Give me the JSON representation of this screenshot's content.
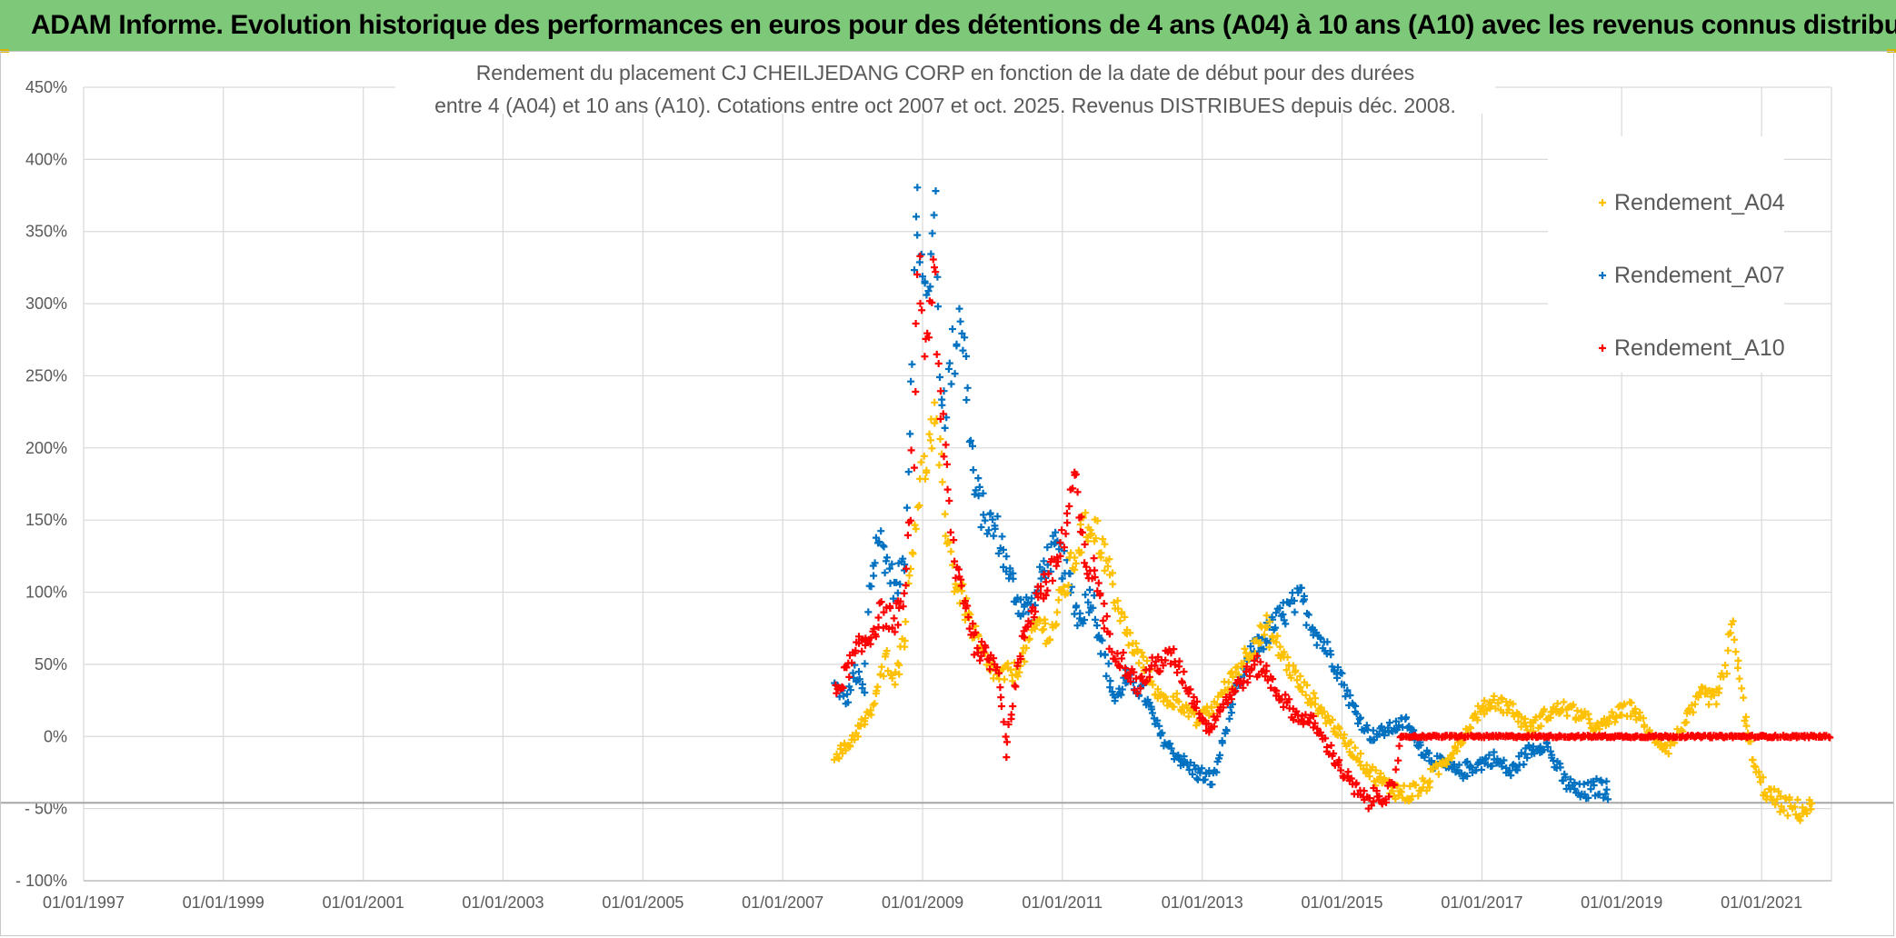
{
  "banner": {
    "title": "ADAM Informe. Evolution historique des performances en euros pour des détentions de 4 ans (A04) à 10 ans (A10) avec les revenus connus distribués"
  },
  "colors": {
    "banner": "#7ec87a",
    "A04": "#ffc000",
    "A07": "#0070c0",
    "A10": "#ff0000",
    "grid": "#d9d9d9",
    "text": "#595959"
  },
  "chart_data": {
    "type": "scatter",
    "title_lines": [
      "Rendement du placement CJ CHEILJEDANG CORP en fonction de la date de début pour des durées",
      "entre 4 (A04) et 10 ans (A10). Cotations entre oct 2007 et oct. 2025. Revenus DISTRIBUES depuis déc. 2008."
    ],
    "x_ticks": [
      "01/01/1997",
      "01/01/1999",
      "01/01/2001",
      "01/01/2003",
      "01/01/2005",
      "01/01/2007",
      "01/01/2009",
      "01/01/2011",
      "01/01/2013",
      "01/01/2015",
      "01/01/2017",
      "01/01/2019",
      "01/01/2021"
    ],
    "xlim": [
      "1997-01-01",
      "2022-01-01"
    ],
    "y_ticks": [
      "- 100%",
      "- 50%",
      "0%",
      "50%",
      "100%",
      "150%",
      "200%",
      "250%",
      "300%",
      "350%",
      "400%",
      "450%"
    ],
    "ylim": [
      -100,
      450
    ],
    "reference_line_y": -46,
    "legend_position": "right",
    "grid": true,
    "series": [
      {
        "name": "Rendement_A04",
        "marker": "+",
        "points": [
          [
            "2007-10-01",
            -12
          ],
          [
            "2007-12-01",
            -8
          ],
          [
            "2008-02-01",
            5
          ],
          [
            "2008-04-01",
            15
          ],
          [
            "2008-05-15",
            35
          ],
          [
            "2008-07-01",
            55
          ],
          [
            "2008-08-15",
            40
          ],
          [
            "2008-10-01",
            75
          ],
          [
            "2008-11-15",
            140
          ],
          [
            "2008-12-15",
            170
          ],
          [
            "2009-02-01",
            200
          ],
          [
            "2009-03-01",
            215
          ],
          [
            "2009-04-01",
            190
          ],
          [
            "2009-05-01",
            150
          ],
          [
            "2009-06-15",
            110
          ],
          [
            "2009-08-01",
            95
          ],
          [
            "2009-10-01",
            70
          ],
          [
            "2009-12-01",
            50
          ],
          [
            "2010-02-01",
            42
          ],
          [
            "2010-05-01",
            45
          ],
          [
            "2010-07-01",
            62
          ],
          [
            "2010-09-01",
            80
          ],
          [
            "2010-11-01",
            70
          ],
          [
            "2011-02-01",
            110
          ],
          [
            "2011-04-01",
            135
          ],
          [
            "2011-06-01",
            150
          ],
          [
            "2011-08-01",
            130
          ],
          [
            "2011-10-01",
            100
          ],
          [
            "2011-12-01",
            70
          ],
          [
            "2012-03-01",
            50
          ],
          [
            "2012-06-01",
            25
          ],
          [
            "2012-09-01",
            25
          ],
          [
            "2012-12-01",
            10
          ],
          [
            "2013-03-01",
            20
          ],
          [
            "2013-06-01",
            40
          ],
          [
            "2013-09-01",
            60
          ],
          [
            "2013-12-01",
            75
          ],
          [
            "2014-03-01",
            55
          ],
          [
            "2014-06-01",
            35
          ],
          [
            "2014-09-01",
            20
          ],
          [
            "2014-12-01",
            5
          ],
          [
            "2015-03-01",
            -10
          ],
          [
            "2015-06-01",
            -25
          ],
          [
            "2015-09-01",
            -35
          ],
          [
            "2015-12-01",
            -40
          ],
          [
            "2016-03-01",
            -35
          ],
          [
            "2016-06-01",
            -20
          ],
          [
            "2016-09-01",
            -5
          ],
          [
            "2016-12-01",
            15
          ],
          [
            "2017-03-01",
            25
          ],
          [
            "2017-06-01",
            20
          ],
          [
            "2017-09-01",
            5
          ],
          [
            "2017-12-01",
            15
          ],
          [
            "2018-03-01",
            20
          ],
          [
            "2018-06-01",
            15
          ],
          [
            "2018-09-01",
            5
          ],
          [
            "2018-12-01",
            15
          ],
          [
            "2019-03-01",
            20
          ],
          [
            "2019-06-01",
            0
          ],
          [
            "2019-09-01",
            -8
          ],
          [
            "2019-12-01",
            10
          ],
          [
            "2020-03-01",
            30
          ],
          [
            "2020-05-01",
            25
          ],
          [
            "2020-07-01",
            45
          ],
          [
            "2020-08-01",
            85
          ],
          [
            "2020-10-01",
            15
          ],
          [
            "2020-12-01",
            -25
          ],
          [
            "2021-02-01",
            -40
          ],
          [
            "2021-05-01",
            -48
          ],
          [
            "2021-08-01",
            -52
          ],
          [
            "2021-10-01",
            -48
          ]
        ]
      },
      {
        "name": "Rendement_A07",
        "marker": "+",
        "points": [
          [
            "2007-10-01",
            35
          ],
          [
            "2007-12-01",
            25
          ],
          [
            "2008-01-15",
            45
          ],
          [
            "2008-03-01",
            30
          ],
          [
            "2008-04-01",
            100
          ],
          [
            "2008-05-15",
            140
          ],
          [
            "2008-07-01",
            120
          ],
          [
            "2008-08-15",
            100
          ],
          [
            "2008-10-01",
            130
          ],
          [
            "2008-11-01",
            250
          ],
          [
            "2008-12-01",
            375
          ],
          [
            "2009-01-01",
            310
          ],
          [
            "2009-02-01",
            300
          ],
          [
            "2009-03-01",
            385
          ],
          [
            "2009-04-01",
            250
          ],
          [
            "2009-05-01",
            230
          ],
          [
            "2009-06-15",
            270
          ],
          [
            "2009-07-15",
            300
          ],
          [
            "2009-08-15",
            255
          ],
          [
            "2009-10-01",
            170
          ],
          [
            "2009-12-01",
            150
          ],
          [
            "2010-02-01",
            140
          ],
          [
            "2010-04-01",
            110
          ],
          [
            "2010-06-01",
            90
          ],
          [
            "2010-08-01",
            90
          ],
          [
            "2010-10-01",
            120
          ],
          [
            "2010-12-01",
            130
          ],
          [
            "2011-02-01",
            110
          ],
          [
            "2011-04-01",
            80
          ],
          [
            "2011-06-01",
            100
          ],
          [
            "2011-08-01",
            60
          ],
          [
            "2011-10-01",
            25
          ],
          [
            "2011-12-01",
            40
          ],
          [
            "2012-03-01",
            30
          ],
          [
            "2012-06-01",
            0
          ],
          [
            "2012-09-01",
            -15
          ],
          [
            "2012-12-01",
            -25
          ],
          [
            "2013-03-01",
            -30
          ],
          [
            "2013-06-01",
            20
          ],
          [
            "2013-09-01",
            55
          ],
          [
            "2013-12-01",
            70
          ],
          [
            "2014-03-01",
            85
          ],
          [
            "2014-06-01",
            95
          ],
          [
            "2014-09-01",
            70
          ],
          [
            "2014-12-01",
            50
          ],
          [
            "2015-03-01",
            20
          ],
          [
            "2015-06-01",
            0
          ],
          [
            "2015-09-01",
            5
          ],
          [
            "2015-12-01",
            10
          ],
          [
            "2016-03-01",
            -10
          ],
          [
            "2016-06-01",
            -20
          ],
          [
            "2016-09-01",
            -25
          ],
          [
            "2016-12-01",
            -20
          ],
          [
            "2017-03-01",
            -15
          ],
          [
            "2017-06-01",
            -25
          ],
          [
            "2017-09-01",
            -10
          ],
          [
            "2017-12-01",
            -5
          ],
          [
            "2018-03-01",
            -30
          ],
          [
            "2018-06-01",
            -40
          ],
          [
            "2018-09-01",
            -35
          ],
          [
            "2018-11-01",
            -38
          ]
        ]
      },
      {
        "name": "Rendement_A10",
        "marker": "+",
        "points": [
          [
            "2007-10-01",
            30
          ],
          [
            "2007-12-01",
            45
          ],
          [
            "2008-02-01",
            60
          ],
          [
            "2008-04-01",
            70
          ],
          [
            "2008-06-01",
            85
          ],
          [
            "2008-08-01",
            80
          ],
          [
            "2008-10-01",
            95
          ],
          [
            "2008-11-15",
            200
          ],
          [
            "2008-12-15",
            330
          ],
          [
            "2009-01-15",
            260
          ],
          [
            "2009-03-01",
            340
          ],
          [
            "2009-04-01",
            230
          ],
          [
            "2009-05-01",
            190
          ],
          [
            "2009-06-15",
            120
          ],
          [
            "2009-08-01",
            100
          ],
          [
            "2009-10-01",
            65
          ],
          [
            "2009-12-01",
            55
          ],
          [
            "2010-02-01",
            50
          ],
          [
            "2010-03-15",
            -10
          ],
          [
            "2010-05-01",
            40
          ],
          [
            "2010-07-01",
            80
          ],
          [
            "2010-09-01",
            100
          ],
          [
            "2010-11-01",
            110
          ],
          [
            "2011-01-15",
            140
          ],
          [
            "2011-03-01",
            180
          ],
          [
            "2011-05-01",
            120
          ],
          [
            "2011-07-01",
            110
          ],
          [
            "2011-09-01",
            65
          ],
          [
            "2011-11-01",
            55
          ],
          [
            "2012-02-01",
            35
          ],
          [
            "2012-05-01",
            50
          ],
          [
            "2012-08-01",
            55
          ],
          [
            "2012-11-01",
            30
          ],
          [
            "2013-02-01",
            5
          ],
          [
            "2013-05-01",
            25
          ],
          [
            "2013-08-01",
            40
          ],
          [
            "2013-11-01",
            50
          ],
          [
            "2014-02-01",
            30
          ],
          [
            "2014-05-01",
            15
          ],
          [
            "2014-08-01",
            10
          ],
          [
            "2014-11-01",
            -10
          ],
          [
            "2015-02-01",
            -30
          ],
          [
            "2015-05-01",
            -45
          ],
          [
            "2015-08-01",
            -40
          ],
          [
            "2015-10-01",
            -38
          ],
          [
            "2015-11-01",
            0
          ],
          [
            "2016-06-01",
            0
          ],
          [
            "2017-01-01",
            0
          ],
          [
            "2017-08-01",
            0
          ],
          [
            "2018-03-01",
            0
          ],
          [
            "2018-10-01",
            0
          ],
          [
            "2019-05-01",
            0
          ],
          [
            "2019-12-01",
            0
          ],
          [
            "2020-07-01",
            0
          ],
          [
            "2021-02-01",
            0
          ],
          [
            "2021-09-01",
            0
          ],
          [
            "2021-12-31",
            0
          ]
        ]
      }
    ]
  }
}
